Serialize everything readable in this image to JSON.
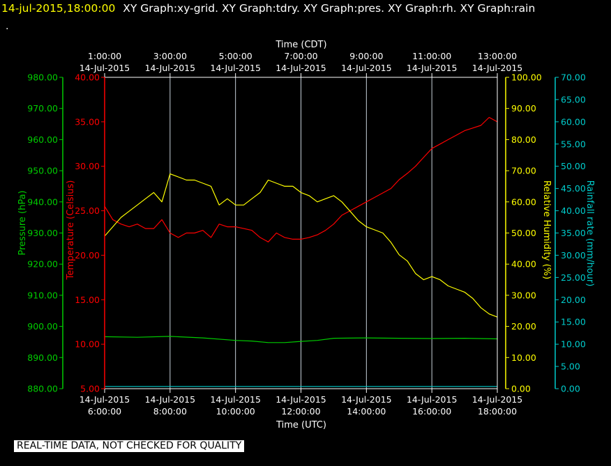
{
  "header": {
    "datetime": "14-jul-2015,18:00:00",
    "graphs": "XY Graph:xy-grid.  XY Graph:tdry.  XY Graph:pres.  XY Graph:rh.  XY Graph:rain",
    "dot": "."
  },
  "footer": {
    "note": "REAL-TIME DATA, NOT CHECKED FOR QUALITY"
  },
  "colors": {
    "grid": "#c8d2dc",
    "temperature": "#ff0000",
    "pressure": "#00cc00",
    "humidity": "#ffff00",
    "rain": "#00cccc",
    "frame": "#ffffff"
  },
  "chart_data": {
    "type": "line",
    "x_top_label": "Time (CDT)",
    "x_bottom_label": "Time (UTC)",
    "x_top_ticks": [
      {
        "time": "1:00:00",
        "date": "14-Jul-2015"
      },
      {
        "time": "3:00:00",
        "date": "14-Jul-2015"
      },
      {
        "time": "5:00:00",
        "date": "14-Jul-2015"
      },
      {
        "time": "7:00:00",
        "date": "14-Jul-2015"
      },
      {
        "time": "9:00:00",
        "date": "14-Jul-2015"
      },
      {
        "time": "11:00:00",
        "date": "14-Jul-2015"
      },
      {
        "time": "13:00:00",
        "date": "14-Jul-2015"
      }
    ],
    "x_bottom_ticks": [
      {
        "date": "14-Jul-2015",
        "time": "6:00:00"
      },
      {
        "date": "14-Jul-2015",
        "time": "8:00:00"
      },
      {
        "date": "14-Jul-2015",
        "time": "10:00:00"
      },
      {
        "date": "14-Jul-2015",
        "time": "12:00:00"
      },
      {
        "date": "14-Jul-2015",
        "time": "14:00:00"
      },
      {
        "date": "14-Jul-2015",
        "time": "16:00:00"
      },
      {
        "date": "14-Jul-2015",
        "time": "18:00:00"
      }
    ],
    "x_hours_utc": [
      6,
      18
    ],
    "axes": {
      "pressure": {
        "label": "Pressure (hPa)",
        "range": [
          880,
          980
        ],
        "ticks": [
          "880.00",
          "890.00",
          "900.00",
          "910.00",
          "920.00",
          "930.00",
          "940.00",
          "950.00",
          "960.00",
          "970.00",
          "980.00"
        ]
      },
      "temperature": {
        "label": "Temperature (Celsius)",
        "range": [
          5,
          40
        ],
        "ticks": [
          "5.00",
          "10.00",
          "15.00",
          "20.00",
          "25.00",
          "30.00",
          "35.00",
          "40.00"
        ]
      },
      "humidity": {
        "label": "Relative Humidity (%)",
        "range": [
          0,
          100
        ],
        "ticks": [
          "0.00",
          "10.00",
          "20.00",
          "30.00",
          "40.00",
          "50.00",
          "60.00",
          "70.00",
          "80.00",
          "90.00",
          "100.00"
        ]
      },
      "rain": {
        "label": "Rainfall rate (mm/hour)",
        "range": [
          0,
          70
        ],
        "ticks": [
          "0.00",
          "5.00",
          "10.00",
          "15.00",
          "20.00",
          "25.00",
          "30.00",
          "35.00",
          "40.00",
          "45.00",
          "50.00",
          "55.00",
          "60.00",
          "65.00",
          "70.00"
        ]
      }
    },
    "grid": true,
    "series": [
      {
        "axis": "temperature",
        "x": [
          6,
          6.25,
          6.5,
          6.75,
          7,
          7.25,
          7.5,
          7.75,
          8,
          8.25,
          8.5,
          8.75,
          9,
          9.25,
          9.5,
          9.75,
          10,
          10.25,
          10.5,
          10.75,
          11,
          11.25,
          11.5,
          11.75,
          12,
          12.25,
          12.5,
          12.75,
          13,
          13.25,
          13.5,
          13.75,
          14,
          14.25,
          14.5,
          14.75,
          15,
          15.25,
          15.5,
          15.75,
          16,
          16.25,
          16.5,
          16.75,
          17,
          17.25,
          17.5,
          17.75,
          18
        ],
        "y": [
          25.5,
          24,
          23.5,
          23.2,
          23.5,
          23,
          23,
          24,
          22.5,
          22,
          22.5,
          22.5,
          22.8,
          22,
          23.5,
          23.2,
          23.2,
          23,
          22.8,
          22,
          21.5,
          22.5,
          22,
          21.8,
          21.8,
          22,
          22.3,
          22.8,
          23.5,
          24.5,
          25,
          25.5,
          26,
          26.5,
          27,
          27.5,
          28.5,
          29.2,
          30,
          31,
          32,
          32.5,
          33,
          33.5,
          34,
          34.3,
          34.6,
          35.5,
          35
        ]
      },
      {
        "axis": "humidity",
        "x": [
          6,
          6.25,
          6.5,
          6.75,
          7,
          7.25,
          7.5,
          7.75,
          8,
          8.25,
          8.5,
          8.75,
          9,
          9.25,
          9.5,
          9.75,
          10,
          10.25,
          10.5,
          10.75,
          11,
          11.25,
          11.5,
          11.75,
          12,
          12.25,
          12.5,
          12.75,
          13,
          13.25,
          13.5,
          13.75,
          14,
          14.25,
          14.5,
          14.75,
          15,
          15.25,
          15.5,
          15.75,
          16,
          16.25,
          16.5,
          16.75,
          17,
          17.25,
          17.5,
          17.75,
          18
        ],
        "y": [
          49,
          52,
          55,
          57,
          59,
          61,
          63,
          60,
          69,
          68,
          67,
          67,
          66,
          65,
          59,
          61,
          59,
          59,
          61,
          63,
          67,
          66,
          65,
          65,
          63,
          62,
          60,
          61,
          62,
          60,
          57,
          54,
          52,
          51,
          50,
          47,
          43,
          41,
          37,
          35,
          36,
          35,
          33,
          32,
          31,
          29,
          26,
          24,
          23
        ]
      },
      {
        "axis": "pressure",
        "x": [
          6,
          7,
          8,
          9,
          10,
          10.5,
          11,
          11.5,
          12,
          12.5,
          13,
          14,
          15,
          16,
          17,
          18
        ],
        "y": [
          896.7,
          896.5,
          896.8,
          896.3,
          895.5,
          895.3,
          894.8,
          894.8,
          895.2,
          895.5,
          896.2,
          896.3,
          896.2,
          896.1,
          896.2,
          896.0
        ]
      },
      {
        "axis": "rain",
        "x": [
          6,
          18
        ],
        "y": [
          0.5,
          0.5
        ]
      }
    ]
  }
}
